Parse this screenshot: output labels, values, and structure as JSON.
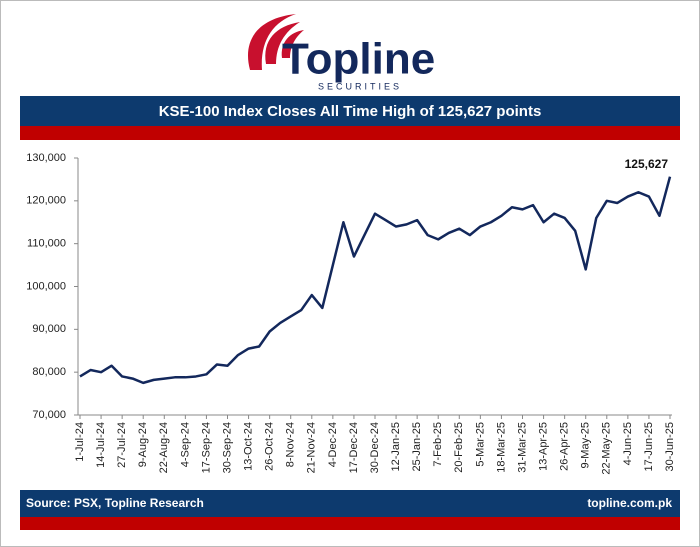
{
  "header": {
    "brand": "Topline",
    "tagline": "SECURITIES"
  },
  "chart_data": {
    "type": "line",
    "title": "KSE-100 Index Closes All Time High of 125,627 points",
    "categories": [
      "1-Jul-24",
      null,
      "14-Jul-24",
      null,
      "27-Jul-24",
      null,
      "9-Aug-24",
      null,
      "22-Aug-24",
      null,
      "4-Sep-24",
      null,
      "17-Sep-24",
      null,
      "30-Sep-24",
      null,
      "13-Oct-24",
      null,
      "26-Oct-24",
      null,
      "8-Nov-24",
      null,
      "21-Nov-24",
      null,
      "4-Dec-24",
      null,
      "17-Dec-24",
      null,
      "30-Dec-24",
      null,
      "12-Jan-25",
      null,
      "25-Jan-25",
      null,
      "7-Feb-25",
      null,
      "20-Feb-25",
      null,
      "5-Mar-25",
      null,
      "18-Mar-25",
      null,
      "31-Mar-25",
      null,
      "13-Apr-25",
      null,
      "26-Apr-25",
      null,
      "9-May-25",
      null,
      "22-May-25",
      null,
      "4-Jun-25",
      null,
      "17-Jun-25",
      null,
      "30-Jun-25"
    ],
    "values": [
      79000,
      80500,
      80000,
      81500,
      79000,
      78500,
      77500,
      78200,
      78500,
      78800,
      78800,
      79000,
      79500,
      81800,
      81500,
      84000,
      85500,
      86000,
      89500,
      91500,
      93000,
      94500,
      98000,
      95000,
      105000,
      115000,
      107000,
      112000,
      117000,
      115500,
      114000,
      114500,
      115500,
      112000,
      111000,
      112500,
      113500,
      112000,
      114000,
      115000,
      116500,
      118500,
      118000,
      119000,
      115000,
      117000,
      116000,
      113000,
      104000,
      116000,
      120000,
      119500,
      121000,
      122000,
      121000,
      116500,
      125627
    ],
    "value_labels": [
      null,
      null,
      null,
      null,
      null,
      null,
      null,
      null,
      null,
      null,
      null,
      null,
      null,
      null,
      null,
      null,
      null,
      null,
      null,
      null,
      null,
      null,
      null,
      null,
      null,
      null,
      null,
      null,
      null,
      null,
      null,
      null,
      null,
      null,
      null,
      null,
      null,
      null,
      null,
      null,
      null,
      null,
      null,
      null,
      null,
      null,
      null,
      null,
      null,
      null,
      null,
      null,
      null,
      null,
      null,
      null,
      "125,627"
    ],
    "color": "#13285c",
    "ylim": [
      70000,
      130000
    ],
    "yticks": [
      {
        "value": 70000,
        "label": "70,000"
      },
      {
        "value": 80000,
        "label": "80,000"
      },
      {
        "value": 90000,
        "label": "90,000"
      },
      {
        "value": 100000,
        "label": "100,000"
      },
      {
        "value": 110000,
        "label": "110,000"
      },
      {
        "value": 120000,
        "label": "120,000"
      },
      {
        "value": 130000,
        "label": "130,000"
      }
    ],
    "grid": false
  },
  "footer": {
    "source": "Source: PSX, Topline Research",
    "website": "topline.com.pk"
  }
}
